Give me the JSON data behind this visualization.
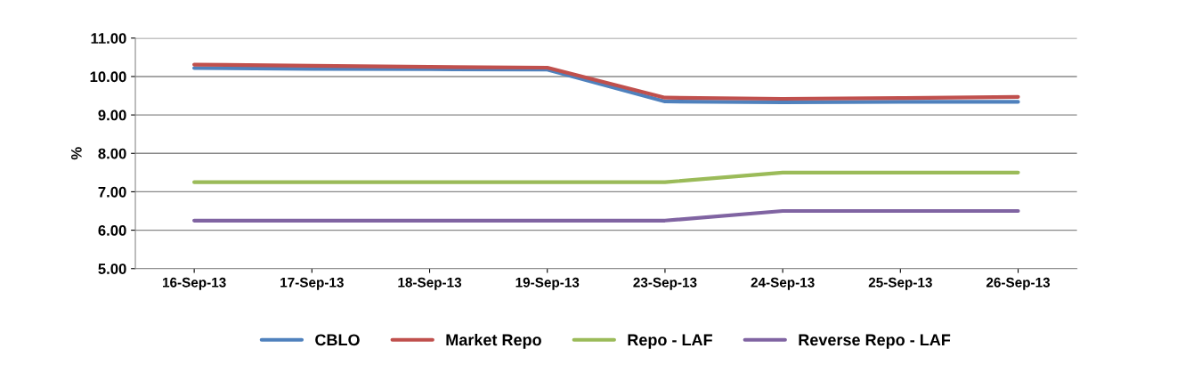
{
  "chart_data": {
    "type": "line",
    "ylabel": "%",
    "categories": [
      "16-Sep-13",
      "17-Sep-13",
      "18-Sep-13",
      "19-Sep-13",
      "23-Sep-13",
      "24-Sep-13",
      "25-Sep-13",
      "26-Sep-13"
    ],
    "series": [
      {
        "name": "CBLO",
        "color": "#4f81bd",
        "values": [
          10.22,
          10.2,
          10.19,
          10.18,
          9.35,
          9.33,
          9.34,
          9.34
        ]
      },
      {
        "name": "Market Repo",
        "color": "#c0504d",
        "values": [
          10.31,
          10.28,
          10.25,
          10.23,
          9.45,
          9.42,
          9.44,
          9.47
        ]
      },
      {
        "name": "Repo - LAF",
        "color": "#9bbb59",
        "values": [
          7.25,
          7.25,
          7.25,
          7.25,
          7.25,
          7.5,
          7.5,
          7.5
        ]
      },
      {
        "name": "Reverse Repo - LAF",
        "color": "#8064a2",
        "values": [
          6.25,
          6.25,
          6.25,
          6.25,
          6.25,
          6.5,
          6.5,
          6.5
        ]
      }
    ],
    "ylim": [
      5,
      11
    ],
    "yticks": [
      {
        "value": 5,
        "label": "5.00"
      },
      {
        "value": 6,
        "label": "6.00"
      },
      {
        "value": 7,
        "label": "7.00"
      },
      {
        "value": 8,
        "label": "8.00"
      },
      {
        "value": 9,
        "label": "9.00"
      },
      {
        "value": 10,
        "label": "10.00"
      },
      {
        "value": 11,
        "label": "11.00"
      }
    ],
    "grid": "y",
    "legend": "bottom",
    "marker": "none",
    "line_style": "solid"
  }
}
